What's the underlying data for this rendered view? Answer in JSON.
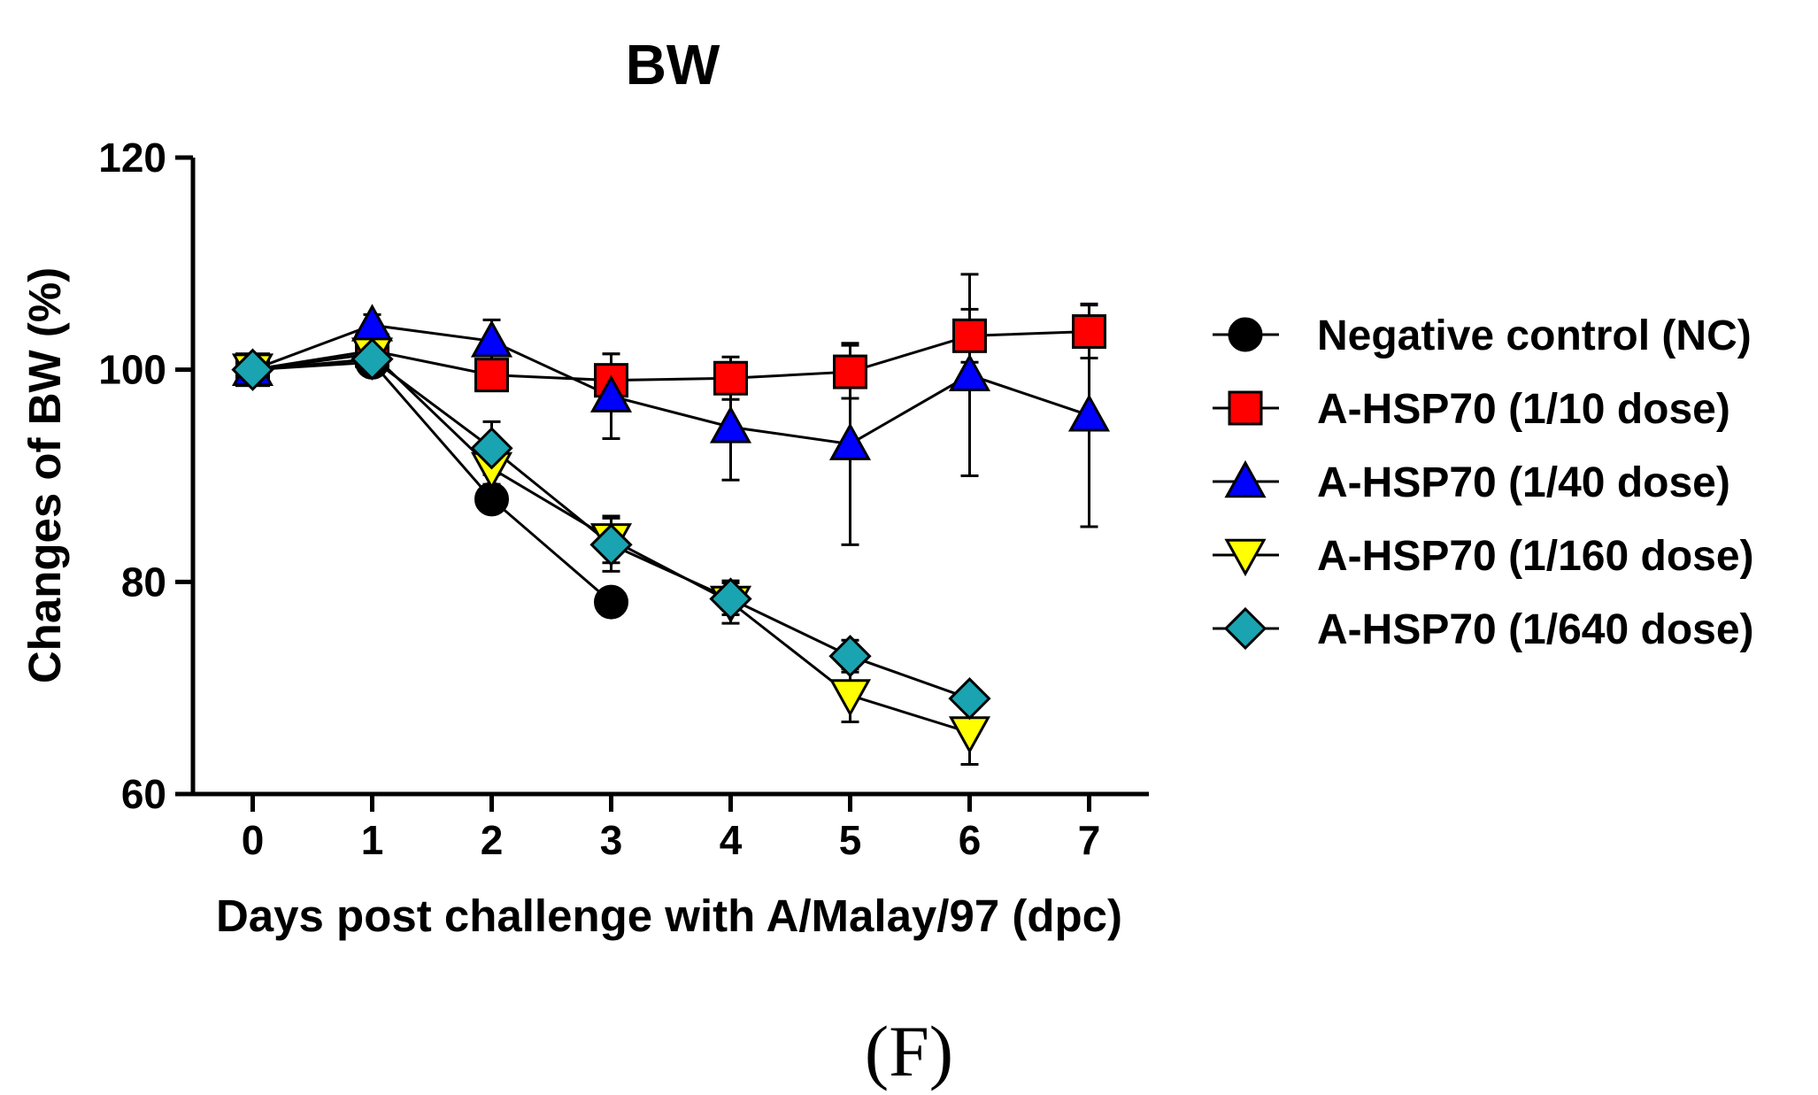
{
  "chart_data": {
    "type": "line",
    "title": "BW",
    "xlabel": "Days post challenge with A/Malay/97 (dpc)",
    "ylabel": "Changes of BW (%)",
    "xlim": [
      -0.5,
      7.5
    ],
    "ylim": [
      60,
      120
    ],
    "xticks": [
      0,
      1,
      2,
      3,
      4,
      5,
      6,
      7
    ],
    "yticks": [
      60,
      80,
      100,
      120
    ],
    "legend_position": "right",
    "grid": false,
    "panel_label": "(F)",
    "series": [
      {
        "name": "Negative control (NC)",
        "marker": "circle",
        "color": "#000000",
        "x": [
          0,
          1,
          2,
          3
        ],
        "y": [
          100,
          100.7,
          87.8,
          78.1
        ],
        "err": [
          0,
          0.8,
          0.5,
          0.5
        ]
      },
      {
        "name": "A-HSP70 (1/10 dose)",
        "marker": "square",
        "color": "#ff0000",
        "x": [
          0,
          1,
          2,
          3,
          4,
          5,
          6,
          7
        ],
        "y": [
          100,
          101.8,
          99.5,
          99.0,
          99.2,
          99.8,
          103.2,
          103.6
        ],
        "err": [
          0,
          1.0,
          1.3,
          2.5,
          2.0,
          2.5,
          2.5,
          2.5
        ]
      },
      {
        "name": "A-HSP70 (1/40 dose)",
        "marker": "triangle-up",
        "color": "#0000ff",
        "x": [
          0,
          1,
          2,
          3,
          4,
          5,
          6,
          7
        ],
        "y": [
          100,
          104.2,
          102.7,
          97.5,
          94.6,
          93.0,
          99.5,
          95.7
        ],
        "err": [
          0,
          1.0,
          2.0,
          4.0,
          5.0,
          9.5,
          9.5,
          10.5
        ]
      },
      {
        "name": "A-HSP70 (1/160 dose)",
        "marker": "triangle-down",
        "color": "#ffff00",
        "x": [
          0,
          1,
          2,
          3,
          4,
          5,
          6
        ],
        "y": [
          100,
          101.5,
          90.7,
          84.0,
          78.1,
          69.3,
          65.8
        ],
        "err": [
          0,
          1.0,
          1.5,
          2.2,
          2.0,
          2.5,
          3.0
        ]
      },
      {
        "name": "A-HSP70 (1/640 dose)",
        "marker": "diamond",
        "color": "#1aa3b0",
        "x": [
          0,
          1,
          2,
          3,
          4,
          5,
          6
        ],
        "y": [
          100,
          101.0,
          92.6,
          83.5,
          78.4,
          73.0,
          69.0
        ],
        "err": [
          0,
          1.0,
          2.5,
          2.5,
          1.5,
          1.5,
          1.0
        ]
      }
    ]
  }
}
